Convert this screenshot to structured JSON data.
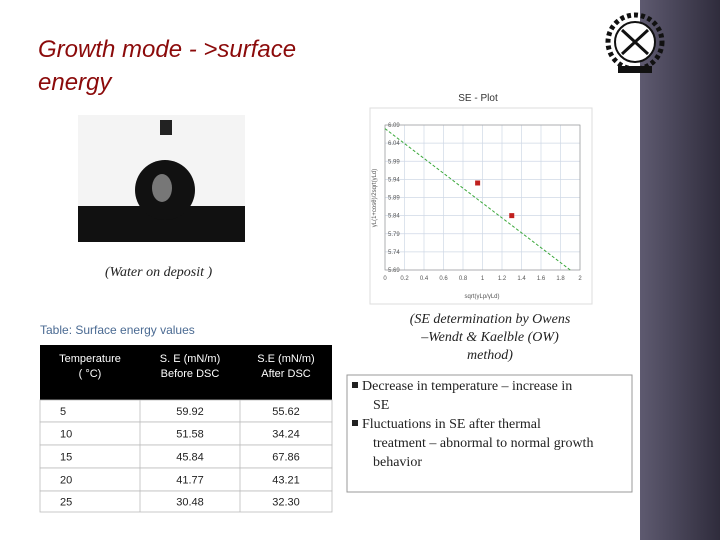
{
  "title": [
    "Growth mode - >surface",
    "energy"
  ],
  "image_caption": "(Water on deposit )",
  "plot": {
    "title": "SE - Plot",
    "xlabel": "sqrt(γLp/γLd)",
    "ylabel": "γL(1+cosθ)/2sqrt(γLd)",
    "xlim": [
      0,
      2
    ],
    "ylim": [
      5.69,
      6.09
    ],
    "xticks": [
      0,
      0.2,
      0.4,
      0.6,
      0.8,
      1,
      1.2,
      1.4,
      1.6,
      1.8,
      2
    ],
    "yticks": [
      6.09,
      6.04,
      5.99,
      5.94,
      5.89,
      5.84,
      5.79,
      5.74,
      5.69
    ],
    "line": {
      "x": [
        0,
        1.9
      ],
      "y": [
        6.08,
        5.69
      ]
    },
    "points": {
      "x": [
        0.95,
        1.3
      ],
      "y": [
        5.93,
        5.84
      ]
    }
  },
  "plot_caption": [
    "(SE determination by Owens",
    "–Wendt & Kaelble (OW)",
    "method)"
  ],
  "table": {
    "caption": "Table: Surface energy values",
    "header": [
      [
        "Temperature",
        "( °C)"
      ],
      [
        "S. E (mN/m)",
        "Before DSC"
      ],
      [
        "S.E (mN/m)",
        "After DSC"
      ]
    ],
    "rows": [
      [
        "5",
        "59.92",
        "55.62"
      ],
      [
        "10",
        "51.58",
        "34.24"
      ],
      [
        "15",
        "45.84",
        "67.86"
      ],
      [
        "20",
        "41.77",
        "43.21"
      ],
      [
        "25",
        "30.48",
        "32.30"
      ]
    ]
  },
  "bullets": [
    [
      "Decrease in temperature – increase in",
      "SE"
    ],
    [
      "Fluctuations in SE after thermal",
      "treatment – abnormal to normal growth",
      "behavior"
    ]
  ]
}
